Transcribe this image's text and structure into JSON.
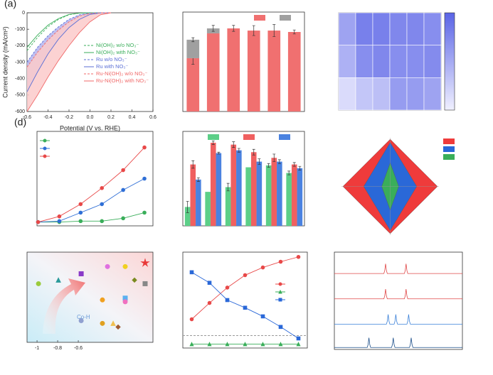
{
  "chart_data": [
    {
      "type": "line",
      "title": "(a)",
      "xlabel": "Potential (V vs. RHE)",
      "ylabel": "Current density (mA/cm²)",
      "x": [
        -0.6,
        -0.5,
        -0.4,
        -0.3,
        -0.2,
        -0.1,
        0,
        0.1,
        0.2
      ],
      "xlim": [
        -0.6,
        0.6
      ],
      "ylim": [
        -600,
        0
      ],
      "xticks": [
        -0.6,
        -0.4,
        -0.2,
        {
          "value": 0,
          "label": "0.0"
        },
        0.2,
        0.4,
        0.6
      ],
      "yticks": [
        -600,
        -500,
        -400,
        -300,
        -200,
        -100,
        0
      ],
      "series": [
        {
          "name": "Ni(OH)₂ w/o NO₃⁻",
          "color": "#3aae5a",
          "dash": true,
          "values": [
            -230,
            -150,
            -85,
            -40,
            -12,
            -2,
            0,
            0,
            0
          ]
        },
        {
          "name": "Ni(OH)₂ with NO₃⁻",
          "color": "#3aae5a",
          "dash": false,
          "values": [
            -210,
            -135,
            -75,
            -35,
            -10,
            -2,
            0,
            0,
            0
          ]
        },
        {
          "name": "Ru w/o NO₃⁻",
          "color": "#5b6fd6",
          "dash": true,
          "values": [
            -300,
            -210,
            -140,
            -85,
            -40,
            -12,
            -2,
            0,
            0
          ]
        },
        {
          "name": "Ru with NO₃⁻",
          "color": "#5b6fd6",
          "dash": false,
          "values": [
            -480,
            -360,
            -250,
            -160,
            -90,
            -40,
            -10,
            -1,
            0
          ]
        },
        {
          "name": "Ru-Ni(OH)₂ w/o NO₃⁻",
          "color": "#f06a6a",
          "dash": true,
          "values": [
            -330,
            -240,
            -165,
            -105,
            -55,
            -20,
            -4,
            0,
            0
          ]
        },
        {
          "name": "Ru-Ni(OH)₂ with NO₃⁻",
          "color": "#f06a6a",
          "dash": false,
          "values": [
            -600,
            -500,
            -390,
            -290,
            -200,
            -120,
            -55,
            -12,
            0
          ]
        }
      ],
      "fills": [
        {
          "between": [
            2,
            3
          ],
          "color": "#b4b4ee"
        },
        {
          "between": [
            4,
            5
          ],
          "color": "#fbcaca"
        }
      ]
    },
    {
      "type": "bar",
      "stacked": true,
      "categories": [
        null,
        null,
        null,
        null,
        null,
        null
      ],
      "ylim": [
        0,
        100
      ],
      "series": [
        {
          "color": "#f07070",
          "values": [
            53.6,
            78.6,
            83.6,
            81.4,
            81.4,
            80
          ],
          "errors": [
            6,
            0,
            0,
            0,
            0,
            0
          ]
        },
        {
          "color": "#a0a0a0",
          "values": [
            18.6,
            5,
            0,
            0,
            0,
            0
          ],
          "errors": [
            2,
            3,
            3,
            5,
            6,
            2
          ]
        }
      ]
    },
    {
      "type": "heatmap",
      "values": [
        [
          0.55,
          0.8,
          0.8,
          0.75,
          0.75,
          0.7
        ],
        [
          0.45,
          0.7,
          0.75,
          0.7,
          0.7,
          0.72
        ],
        [
          0.15,
          0.3,
          0.35,
          0.6,
          0.6,
          0.55
        ]
      ],
      "colors": [
        "#f0f0ff",
        "#5a64e6"
      ]
    },
    {
      "type": "line",
      "title": "(d)",
      "x": [
        0,
        1,
        2,
        3,
        4,
        5
      ],
      "xlim": [
        -0.05,
        5.4
      ],
      "ylim": [
        0,
        1
      ],
      "series": [
        {
          "color": "#3aae5a",
          "marker": "circle",
          "values": [
            0.04,
            0.04,
            0.05,
            0.05,
            0.08,
            0.14
          ]
        },
        {
          "color": "#2f6fd6",
          "marker": "circle",
          "values": [
            0.04,
            0.05,
            0.14,
            0.23,
            0.38,
            0.5
          ]
        },
        {
          "color": "#e84848",
          "marker": "circle",
          "values": [
            0.04,
            0.1,
            0.23,
            0.4,
            0.59,
            0.83
          ]
        }
      ]
    },
    {
      "type": "bar",
      "stacked": false,
      "categories": [
        null,
        null,
        null,
        null,
        null,
        null
      ],
      "ylim": [
        0,
        1
      ],
      "series": [
        {
          "color": "#5ccf88",
          "values": [
            0.2,
            0.36,
            0.41,
            0.62,
            0.64,
            0.56
          ],
          "errors": [
            0.06,
            0,
            0.04,
            0,
            0.02,
            0.02
          ]
        },
        {
          "color": "#f06060",
          "values": [
            0.65,
            0.88,
            0.86,
            0.78,
            0.72,
            0.65
          ],
          "errors": [
            0.04,
            0.02,
            0.03,
            0.03,
            0.04,
            0.02
          ]
        },
        {
          "color": "#4a82e0",
          "values": [
            0.49,
            0.77,
            0.8,
            0.68,
            0.68,
            0.61
          ],
          "errors": [
            0.02,
            0.01,
            0.02,
            0.03,
            0.02,
            0.02
          ]
        }
      ]
    },
    {
      "type": "radar",
      "categories": [
        null,
        null,
        null,
        null
      ],
      "series": [
        {
          "color": "#ef3b3b",
          "values": [
            1,
            1,
            1,
            1
          ]
        },
        {
          "color": "#2a68d8",
          "values": [
            0.93,
            0.56,
            0.93,
            0.56
          ]
        },
        {
          "color": "#3aae5a",
          "values": [
            0.5,
            0.18,
            0.5,
            0.18
          ]
        }
      ]
    },
    {
      "type": "scatter",
      "annotation": "Co-H",
      "xlim": [
        -1.097,
        0.124
      ],
      "ylim": [
        0,
        1
      ],
      "xticks": [
        -1,
        -0.8,
        -0.6
      ],
      "x": [
        -0.986,
        -0.793,
        -0.572,
        -0.317,
        -0.145,
        0.048,
        -0.055,
        0.048,
        -0.366,
        -0.145,
        -0.145,
        -0.572,
        -0.366,
        -0.262,
        -0.214
      ],
      "values": [
        0.65,
        0.69,
        0.76,
        0.84,
        0.84,
        0.88,
        0.69,
        0.65,
        0.47,
        0.49,
        0.45,
        0.24,
        0.21,
        0.21,
        0.17
      ],
      "colors": [
        "#9acb3c",
        "#2a9a9a",
        "#8a3ac8",
        "#e070e0",
        "#f0d020",
        "#e83838",
        "#7a8a20",
        "#888888",
        "#f0a020",
        "#5ab0f0",
        "#f070c0",
        "#90a0d0",
        "#e0a020",
        "#f0c050",
        "#a05a30"
      ],
      "markers": [
        "circle",
        "triangle",
        "square",
        "circle",
        "circle",
        "star",
        "diamond",
        "square",
        "circle",
        "square",
        "circle",
        "circle",
        "circle",
        "triangle",
        "diamond"
      ]
    },
    {
      "type": "line",
      "x": [
        0,
        1,
        2,
        3,
        4,
        5,
        6
      ],
      "xlim": [
        -0.5,
        6.5
      ],
      "ylim": [
        0,
        1
      ],
      "hline": 0.13,
      "series": [
        {
          "color": "#e84848",
          "marker": "circle",
          "values": [
            0.3,
            0.47,
            0.63,
            0.76,
            0.84,
            0.9,
            0.95
          ]
        },
        {
          "color": "#3aae5a",
          "marker": "triangle",
          "values": [
            0.04,
            0.04,
            0.04,
            0.04,
            0.04,
            0.04,
            0.04
          ]
        },
        {
          "color": "#2a68d8",
          "marker": "square",
          "values": [
            0.79,
            0.68,
            0.5,
            0.42,
            0.33,
            0.22,
            0.1
          ]
        }
      ]
    },
    {
      "type": "spectra",
      "xlim": [
        0,
        100
      ],
      "ylim": [
        0,
        1
      ],
      "peak_height": 0.1,
      "series": [
        {
          "color": "#e04848",
          "offset": 0.78,
          "peaks": [
            40,
            56
          ]
        },
        {
          "color": "#e04848",
          "offset": 0.52,
          "peaks": [
            40,
            56
          ]
        },
        {
          "color": "#3a80d8",
          "offset": 0.26,
          "peaks": [
            42,
            48,
            58
          ]
        },
        {
          "color": "#1d4f8a",
          "offset": 0.02,
          "peaks": [
            27,
            46,
            60
          ]
        }
      ]
    }
  ]
}
